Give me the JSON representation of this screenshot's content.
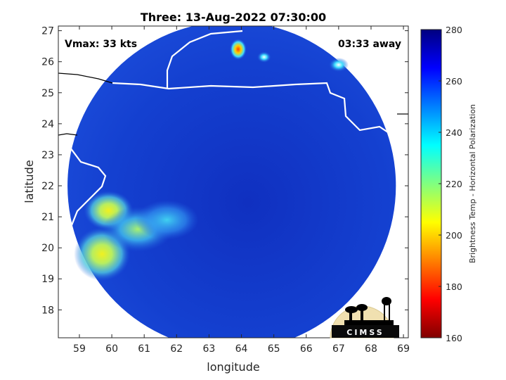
{
  "chart_data": {
    "type": "heatmap",
    "title": "Three: 13-Aug-2022 07:30:00",
    "xlabel": "longitude",
    "ylabel": "latitude",
    "xlim": [
      58.35,
      69.15
    ],
    "ylim": [
      17.1,
      27.15
    ],
    "xticks": [
      59,
      60,
      61,
      62,
      63,
      64,
      65,
      66,
      67,
      68,
      69
    ],
    "yticks": [
      18,
      19,
      20,
      21,
      22,
      23,
      24,
      25,
      26,
      27
    ],
    "annotation_left": "Vmax: 33 kts",
    "annotation_right": "03:33 away",
    "colorbar": {
      "label": "Brightness Temp - Horizontal Polarization",
      "min": 160,
      "max": 280,
      "ticks": [
        160,
        180,
        200,
        220,
        240,
        260,
        280
      ],
      "colormap": [
        "#800000",
        "#ff0000",
        "#ff8000",
        "#ffff00",
        "#80ff80",
        "#00ffff",
        "#0080ff",
        "#0000ff",
        "#000080"
      ]
    },
    "swath": {
      "shape": "circle",
      "center": [
        63.7,
        22.0
      ],
      "radius_deg_lat": 5.3
    },
    "features": [
      {
        "type": "warm_region",
        "lon": 59.7,
        "lat": 19.8,
        "value": 205
      },
      {
        "type": "warm_region",
        "lon": 59.9,
        "lat": 21.2,
        "value": 220
      },
      {
        "type": "warm_region",
        "lon": 60.8,
        "lat": 20.6,
        "value": 232
      },
      {
        "type": "warm_region",
        "lon": 61.7,
        "lat": 20.9,
        "value": 240
      },
      {
        "type": "warm_spot",
        "lon": 63.9,
        "lat": 26.4,
        "value": 200
      },
      {
        "type": "warm_spot",
        "lon": 64.7,
        "lat": 26.15,
        "value": 225
      },
      {
        "type": "warm_spot",
        "lon": 67.0,
        "lat": 25.9,
        "value": 245
      }
    ],
    "grid": false,
    "legend": "none"
  },
  "logo": {
    "text": "CIMSS"
  }
}
